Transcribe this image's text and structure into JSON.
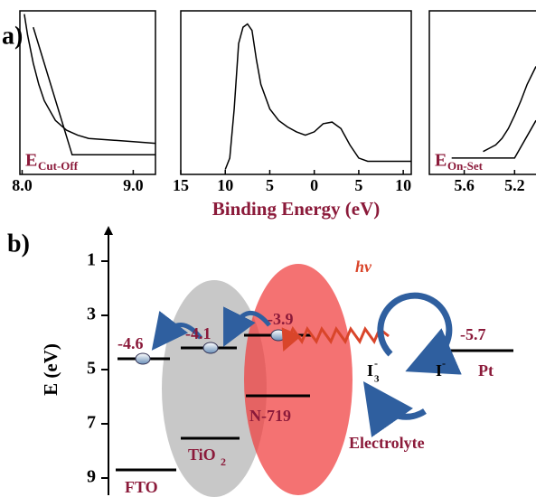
{
  "figure": {
    "panel_a": "a)",
    "panel_b": "b)"
  },
  "chart_data": [
    {
      "type": "line",
      "xlim": [
        7.98,
        9.2
      ],
      "xticks": [
        {
          "value": 8,
          "label": "8.0"
        },
        {
          "value": 9,
          "label": "9.0"
        }
      ],
      "ylim": [
        0,
        1
      ],
      "annotation": "E",
      "annotation_subscript": "Cut-Off",
      "series": [
        {
          "color": "#000000",
          "x": [
            8.02,
            8.05,
            8.1,
            8.15,
            8.2,
            8.3,
            8.4,
            8.5,
            8.6,
            8.8,
            9.0,
            9.2
          ],
          "values": [
            0.98,
            0.85,
            0.68,
            0.55,
            0.45,
            0.33,
            0.27,
            0.24,
            0.22,
            0.21,
            0.2,
            0.19
          ]
        },
        {
          "color": "#000000",
          "x": [
            8.1,
            8.45,
            9.2
          ],
          "values": [
            0.9,
            0.12,
            0.12
          ]
        }
      ]
    },
    {
      "type": "line",
      "xlim": [
        15,
        -10.9
      ],
      "xticks": [
        15,
        10,
        5,
        0,
        {
          "value": -5,
          "label": "5"
        },
        {
          "value": -10,
          "label": "10"
        }
      ],
      "ylim": [
        0,
        1
      ],
      "x_label": "Binding Energy (eV)",
      "series": [
        {
          "color": "#000000",
          "x": [
            10,
            9.5,
            9,
            8.5,
            8,
            7.5,
            7,
            6.5,
            6,
            5,
            4,
            3,
            2,
            1,
            0,
            -1,
            -2,
            -3,
            -4,
            -5,
            -6,
            -8,
            -10.9
          ],
          "values": [
            0.03,
            0.1,
            0.4,
            0.8,
            0.9,
            0.92,
            0.88,
            0.7,
            0.55,
            0.4,
            0.33,
            0.29,
            0.26,
            0.24,
            0.26,
            0.31,
            0.32,
            0.28,
            0.18,
            0.1,
            0.08,
            0.08,
            0.08
          ]
        }
      ]
    },
    {
      "type": "line",
      "xlim": [
        5.877,
        5.03
      ],
      "xticks": [
        5.6,
        5.2
      ],
      "ylim": [
        0,
        1
      ],
      "annotation": "E",
      "annotation_subscript": "On-Set",
      "series": [
        {
          "color": "#000000",
          "x": [
            5.45,
            5.4,
            5.35,
            5.3,
            5.25,
            5.2,
            5.15,
            5.1,
            5.03
          ],
          "values": [
            0.14,
            0.16,
            0.18,
            0.22,
            0.28,
            0.36,
            0.45,
            0.55,
            0.66
          ]
        },
        {
          "color": "#000000",
          "x": [
            5.7,
            5.2,
            5.03
          ],
          "values": [
            0.1,
            0.1,
            0.33
          ]
        }
      ]
    },
    {
      "type": "energy-axis",
      "y_label": "E (eV)",
      "ylim": [
        -0.3,
        9.7
      ],
      "yticks": [
        1,
        3,
        5,
        7,
        9
      ]
    }
  ],
  "diagram": {
    "fto_level": "-4.6",
    "tio2_level": "-4.1",
    "dye_level": "-3.9",
    "pt_level": "-5.7",
    "fto": "FTO",
    "tio2": "TiO",
    "tio2_sub": "2",
    "dye": "N-719",
    "pt": "Pt",
    "electrolyte": "Electrolyte",
    "light": "hν",
    "triiodide": "I",
    "triiodide_sub": "3",
    "triiodide_sup": "-",
    "iodide": "I",
    "iodide_sup": "-"
  }
}
